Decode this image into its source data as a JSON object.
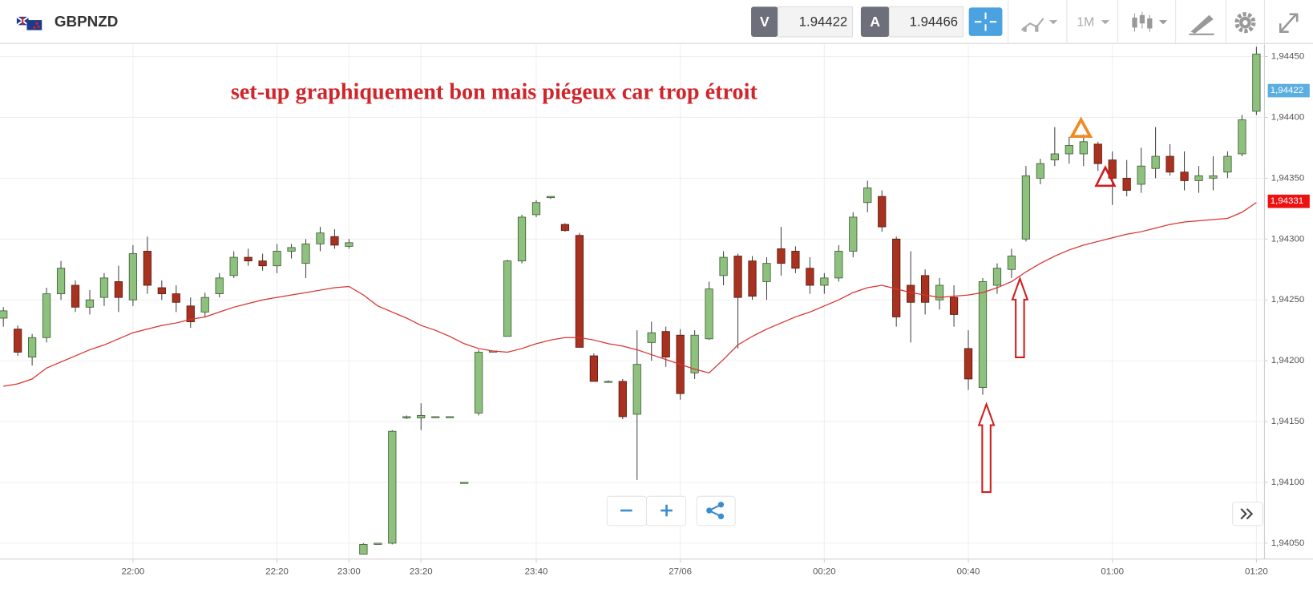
{
  "header": {
    "symbol": "GBPNZD",
    "bid_label": "V",
    "bid": "1.94422",
    "ask_label": "A",
    "ask": "1.94466",
    "timeframe": "1M"
  },
  "chart_data": {
    "type": "candlestick",
    "annotation": "set-up graphiquement bon mais piégeux car trop étroit",
    "categories": [
      null,
      null,
      null,
      null,
      null,
      null,
      null,
      null,
      null,
      "22:00",
      null,
      null,
      null,
      null,
      null,
      null,
      null,
      null,
      null,
      "22:20",
      null,
      null,
      null,
      null,
      "23:00",
      null,
      null,
      null,
      null,
      "23:20",
      null,
      null,
      null,
      null,
      null,
      null,
      null,
      "23:40",
      null,
      null,
      null,
      null,
      null,
      null,
      null,
      null,
      null,
      "27/06",
      null,
      null,
      null,
      null,
      null,
      null,
      null,
      null,
      null,
      "00:20",
      null,
      null,
      null,
      null,
      null,
      null,
      null,
      null,
      null,
      "00:40",
      null,
      null,
      null,
      null,
      null,
      null,
      null,
      null,
      null,
      "01:00",
      null,
      null,
      null,
      null,
      null,
      null,
      null,
      null,
      null,
      "01:20"
    ],
    "open": [
      1.94235,
      1.94226,
      1.94203,
      1.94219,
      1.94255,
      1.94262,
      1.94244,
      1.94252,
      1.94265,
      1.9425,
      1.9429,
      1.9426,
      1.94255,
      1.94245,
      1.9424,
      1.94255,
      1.9427,
      1.94285,
      1.94282,
      1.94278,
      1.9429,
      1.9428,
      1.94296,
      1.94302,
      1.94294,
      1.94041,
      1.94049,
      1.9405,
      1.94153,
      1.94153,
      1.94154,
      1.94154,
      1.941,
      1.94157,
      1.94207,
      1.9422,
      1.94282,
      1.9432,
      1.94334,
      1.94312,
      1.94303,
      1.94204,
      1.94183,
      1.94183,
      1.94156,
      1.94215,
      1.94224,
      1.94221,
      1.9419,
      1.94218,
      1.9427,
      1.94286,
      1.94282,
      1.94265,
      1.94292,
      1.9429,
      1.94276,
      1.94262,
      1.94268,
      1.9429,
      1.9433,
      1.94335,
      1.943,
      1.94262,
      1.9427,
      1.9425,
      1.94252,
      1.9421,
      1.94178,
      1.94262,
      1.94275,
      1.943,
      1.9435,
      1.94365,
      1.9437,
      1.9437,
      1.94378,
      1.94365,
      1.9435,
      1.94345,
      1.94358,
      1.94368,
      1.94355,
      1.94348,
      1.9435,
      1.94355,
      1.9437,
      1.94405
    ],
    "high": [
      1.94244,
      1.94229,
      1.94222,
      1.9426,
      1.94282,
      1.94266,
      1.94258,
      1.94272,
      1.94278,
      1.94295,
      1.94302,
      1.94266,
      1.94262,
      1.94252,
      1.94256,
      1.94272,
      1.9429,
      1.94292,
      1.94288,
      1.94296,
      1.94296,
      1.943,
      1.9431,
      1.94308,
      1.943,
      1.9405,
      1.9405,
      1.94143,
      1.94155,
      1.94165,
      1.94154,
      1.94154,
      1.941,
      1.94209,
      1.94208,
      1.94283,
      1.9432,
      1.94332,
      1.94335,
      1.94313,
      1.94305,
      1.94206,
      1.94184,
      1.94185,
      1.94225,
      1.94232,
      1.94228,
      1.94226,
      1.94225,
      1.94265,
      1.9429,
      1.94288,
      1.94286,
      1.94285,
      1.9431,
      1.94294,
      1.94285,
      1.94272,
      1.94295,
      1.94322,
      1.94348,
      1.9434,
      1.94302,
      1.9429,
      1.94275,
      1.94268,
      1.94262,
      1.94225,
      1.94268,
      1.9428,
      1.94292,
      1.9436,
      1.94366,
      1.94392,
      1.94384,
      1.94386,
      1.9438,
      1.94372,
      1.94365,
      1.94375,
      1.94392,
      1.94378,
      1.94372,
      1.9436,
      1.94368,
      1.94372,
      1.94402,
      1.94458
    ],
    "low": [
      1.94228,
      1.94204,
      1.94196,
      1.94215,
      1.9425,
      1.9424,
      1.94238,
      1.94245,
      1.9424,
      1.94245,
      1.94255,
      1.9425,
      1.9424,
      1.94227,
      1.94236,
      1.94252,
      1.94268,
      1.94278,
      1.94274,
      1.94272,
      1.94284,
      1.94268,
      1.9429,
      1.94292,
      1.94292,
      1.94041,
      1.94049,
      1.94049,
      1.94152,
      1.94143,
      1.94154,
      1.94154,
      1.941,
      1.94155,
      1.94207,
      1.9422,
      1.9428,
      1.94318,
      1.94333,
      1.94306,
      1.94211,
      1.94183,
      1.94182,
      1.94152,
      1.94102,
      1.942,
      1.94195,
      1.94168,
      1.94185,
      1.94217,
      1.94262,
      1.9421,
      1.9425,
      1.9425,
      1.9427,
      1.94272,
      1.94255,
      1.94255,
      1.94265,
      1.94285,
      1.94322,
      1.94306,
      1.94228,
      1.94215,
      1.94238,
      1.94242,
      1.94228,
      1.94176,
      1.94172,
      1.94255,
      1.94268,
      1.94298,
      1.94345,
      1.9436,
      1.94362,
      1.9436,
      1.94356,
      1.94328,
      1.94335,
      1.94338,
      1.9435,
      1.94352,
      1.9434,
      1.94338,
      1.9434,
      1.9435,
      1.94368,
      1.94402
    ],
    "close": [
      1.94241,
      1.94207,
      1.94219,
      1.94255,
      1.94276,
      1.94244,
      1.9425,
      1.94268,
      1.94252,
      1.94288,
      1.94262,
      1.94255,
      1.94248,
      1.94232,
      1.94252,
      1.94268,
      1.94285,
      1.94282,
      1.94278,
      1.9429,
      1.94293,
      1.94296,
      1.94305,
      1.94295,
      1.94297,
      1.94049,
      1.9405,
      1.94142,
      1.94154,
      1.94155,
      1.94154,
      1.94154,
      1.941,
      1.94207,
      1.94208,
      1.94282,
      1.94318,
      1.9433,
      1.94335,
      1.94307,
      1.94211,
      1.94183,
      1.94183,
      1.94154,
      1.94197,
      1.94223,
      1.94203,
      1.94173,
      1.94221,
      1.94259,
      1.94285,
      1.94252,
      1.94253,
      1.9428,
      1.9428,
      1.94276,
      1.94262,
      1.94268,
      1.9429,
      1.94318,
      1.94342,
      1.9431,
      1.94236,
      1.94248,
      1.94248,
      1.94262,
      1.94238,
      1.94185,
      1.94265,
      1.94276,
      1.94286,
      1.94352,
      1.94362,
      1.9437,
      1.94377,
      1.9438,
      1.94362,
      1.9435,
      1.9434,
      1.9436,
      1.94368,
      1.94355,
      1.94348,
      1.94352,
      1.94352,
      1.94368,
      1.94398,
      1.94452
    ],
    "up_color": "#8fc17e",
    "down_color": "#a8321f",
    "lines": [
      {
        "color": "#d9322f",
        "values": [
          1.94179,
          1.94181,
          1.94185,
          1.94194,
          1.94199,
          1.94204,
          1.94209,
          1.94213,
          1.94218,
          1.94223,
          1.94226,
          1.94229,
          1.94231,
          1.94234,
          1.94236,
          1.9424,
          1.94244,
          1.94247,
          1.9425,
          1.94252,
          1.94254,
          1.94256,
          1.94258,
          1.9426,
          1.94261,
          1.94254,
          1.94245,
          1.9424,
          1.94235,
          1.94229,
          1.94225,
          1.9422,
          1.94214,
          1.9421,
          1.94208,
          1.94207,
          1.9421,
          1.94214,
          1.94217,
          1.94219,
          1.94219,
          1.94217,
          1.94214,
          1.94212,
          1.94209,
          1.94205,
          1.94201,
          1.94197,
          1.94193,
          1.9419,
          1.94201,
          1.94213,
          1.9422,
          1.94226,
          1.94231,
          1.94236,
          1.9424,
          1.94245,
          1.9425,
          1.94256,
          1.9426,
          1.94262,
          1.94259,
          1.94256,
          1.94254,
          1.94252,
          1.94253,
          1.94254,
          1.94256,
          1.9426,
          1.94265,
          1.94273,
          1.9428,
          1.94286,
          1.94291,
          1.94295,
          1.94298,
          1.94301,
          1.94304,
          1.94306,
          1.94309,
          1.94312,
          1.94314,
          1.94315,
          1.94316,
          1.94317,
          1.94322,
          1.9433
        ]
      }
    ],
    "price_markers": [
      {
        "value": 1.94422,
        "label": "1,94422",
        "color": "#5aaee0"
      },
      {
        "value": 1.94331,
        "label": "1,94331",
        "color": "#ee1111"
      }
    ],
    "ylim": [
      1.94037,
      1.9446
    ],
    "yticks": [
      {
        "value": 1.9405,
        "label": "1,94050"
      },
      {
        "value": 1.941,
        "label": "1,94100"
      },
      {
        "value": 1.9415,
        "label": "1,94150"
      },
      {
        "value": 1.942,
        "label": "1,94200"
      },
      {
        "value": 1.9425,
        "label": "1,94250"
      },
      {
        "value": 1.943,
        "label": "1,94300"
      },
      {
        "value": 1.9435,
        "label": "1,94350"
      },
      {
        "value": 1.944,
        "label": "1,94400"
      },
      {
        "value": 1.9445,
        "label": "1,94450"
      }
    ],
    "grid": true
  }
}
